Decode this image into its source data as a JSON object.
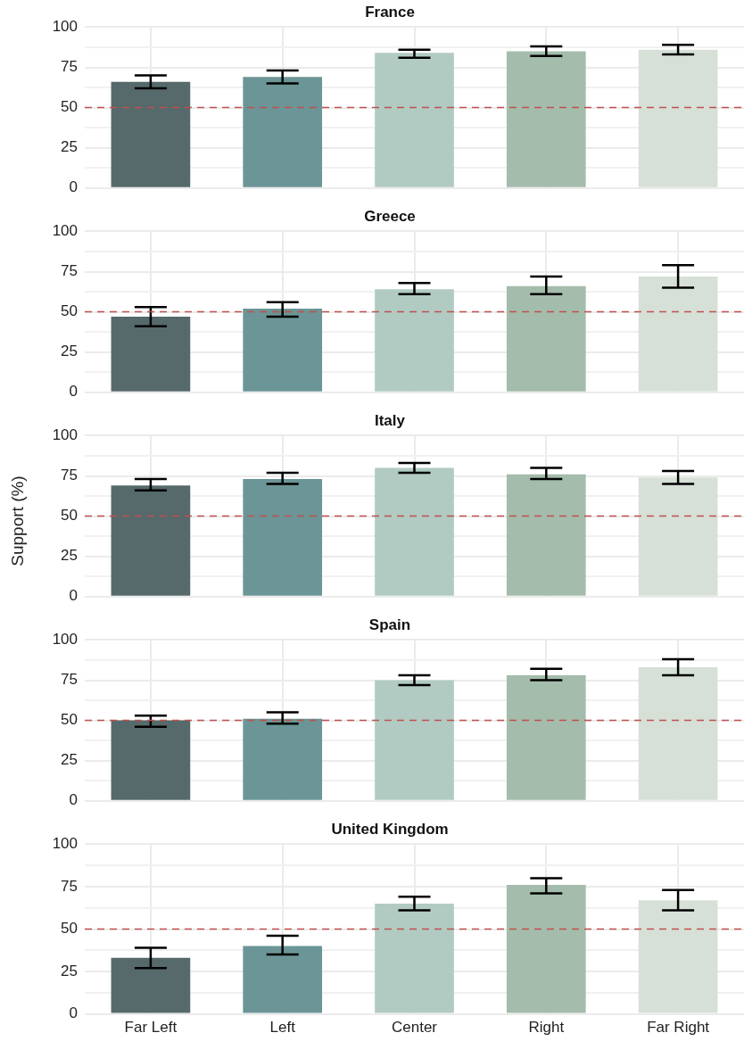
{
  "chart_data": [
    {
      "type": "bar",
      "title": "France",
      "categories": [
        null,
        null,
        null,
        null,
        null
      ],
      "values": [
        66,
        69,
        84,
        85,
        86
      ],
      "errors": [
        [
          62,
          70
        ],
        [
          65,
          73
        ],
        [
          81,
          86
        ],
        [
          82,
          88
        ],
        [
          83,
          89
        ]
      ],
      "colors": [
        "#56696b",
        "#6b9596",
        "#b1cbc3",
        "#a4bcab",
        "#d6e0d7"
      ],
      "ylim": [
        0,
        100
      ],
      "yticks": [
        0,
        {
          "value": 12.5,
          "label": null
        },
        25,
        {
          "value": 37.5,
          "label": null
        },
        50,
        {
          "value": 62.5,
          "label": null
        },
        75,
        {
          "value": 87.5,
          "label": null
        },
        100
      ],
      "grid": true,
      "tick_labels": "y",
      "ref_lines": [
        {
          "axis": "y",
          "value": 50,
          "color": "#c0504d",
          "line_style": "dashed"
        }
      ]
    },
    {
      "type": "bar",
      "title": "Greece",
      "categories": [
        null,
        null,
        null,
        null,
        null
      ],
      "values": [
        47,
        52,
        64,
        66,
        72
      ],
      "errors": [
        [
          41,
          53
        ],
        [
          47,
          56
        ],
        [
          61,
          68
        ],
        [
          61,
          72
        ],
        [
          65,
          79
        ]
      ],
      "colors": [
        "#56696b",
        "#6b9596",
        "#b1cbc3",
        "#a4bcab",
        "#d6e0d7"
      ],
      "ylim": [
        0,
        100
      ],
      "yticks": [
        0,
        {
          "value": 12.5,
          "label": null
        },
        25,
        {
          "value": 37.5,
          "label": null
        },
        50,
        {
          "value": 62.5,
          "label": null
        },
        75,
        {
          "value": 87.5,
          "label": null
        },
        100
      ],
      "grid": true,
      "tick_labels": "y",
      "ref_lines": [
        {
          "axis": "y",
          "value": 50,
          "color": "#c0504d",
          "line_style": "dashed"
        }
      ]
    },
    {
      "type": "bar",
      "title": "Italy",
      "ylabel": "Support (%)",
      "categories": [
        null,
        null,
        null,
        null,
        null
      ],
      "values": [
        69,
        73,
        80,
        76,
        74
      ],
      "errors": [
        [
          66,
          73
        ],
        [
          70,
          77
        ],
        [
          77,
          83
        ],
        [
          73,
          80
        ],
        [
          70,
          78
        ]
      ],
      "colors": [
        "#56696b",
        "#6b9596",
        "#b1cbc3",
        "#a4bcab",
        "#d6e0d7"
      ],
      "ylim": [
        0,
        100
      ],
      "yticks": [
        0,
        {
          "value": 12.5,
          "label": null
        },
        25,
        {
          "value": 37.5,
          "label": null
        },
        50,
        {
          "value": 62.5,
          "label": null
        },
        75,
        {
          "value": 87.5,
          "label": null
        },
        100
      ],
      "grid": true,
      "tick_labels": "y",
      "ref_lines": [
        {
          "axis": "y",
          "value": 50,
          "color": "#c0504d",
          "line_style": "dashed"
        }
      ]
    },
    {
      "type": "bar",
      "title": "Spain",
      "categories": [
        null,
        null,
        null,
        null,
        null
      ],
      "values": [
        50,
        51,
        75,
        78,
        83
      ],
      "errors": [
        [
          46,
          53
        ],
        [
          48,
          55
        ],
        [
          72,
          78
        ],
        [
          75,
          82
        ],
        [
          78,
          88
        ]
      ],
      "colors": [
        "#56696b",
        "#6b9596",
        "#b1cbc3",
        "#a4bcab",
        "#d6e0d7"
      ],
      "ylim": [
        0,
        100
      ],
      "yticks": [
        0,
        {
          "value": 12.5,
          "label": null
        },
        25,
        {
          "value": 37.5,
          "label": null
        },
        50,
        {
          "value": 62.5,
          "label": null
        },
        75,
        {
          "value": 87.5,
          "label": null
        },
        100
      ],
      "grid": true,
      "tick_labels": "y",
      "ref_lines": [
        {
          "axis": "y",
          "value": 50,
          "color": "#c0504d",
          "line_style": "dashed"
        }
      ]
    },
    {
      "type": "bar",
      "title": "United Kingdom",
      "categories": [
        "Far Left",
        "Left",
        "Center",
        "Right",
        "Far Right"
      ],
      "values": [
        33,
        40,
        65,
        76,
        67
      ],
      "errors": [
        [
          27,
          39
        ],
        [
          35,
          46
        ],
        [
          61,
          69
        ],
        [
          71,
          80
        ],
        [
          61,
          73
        ]
      ],
      "colors": [
        "#56696b",
        "#6b9596",
        "#b1cbc3",
        "#a4bcab",
        "#d6e0d7"
      ],
      "ylim": [
        0,
        100
      ],
      "yticks": [
        0,
        {
          "value": 12.5,
          "label": null
        },
        25,
        {
          "value": 37.5,
          "label": null
        },
        50,
        {
          "value": 62.5,
          "label": null
        },
        75,
        {
          "value": 87.5,
          "label": null
        },
        100
      ],
      "grid": true,
      "ref_lines": [
        {
          "axis": "y",
          "value": 50,
          "color": "#c0504d",
          "line_style": "dashed"
        }
      ]
    }
  ]
}
